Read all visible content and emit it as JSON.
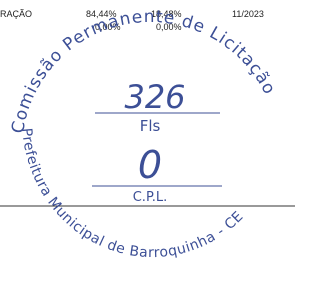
{
  "table": {
    "row": [
      "RAÇÃO",
      "84,44%",
      "18,48%",
      "11/2023"
    ],
    "subrow": [
      "0,00%",
      "0,00%"
    ]
  },
  "stamp": {
    "top_text": "Comissão Permanente de Licitação",
    "bottom_text": "Prefeitura Municipal de Barroquinha - CE",
    "number": "326",
    "fls_label": "Fls",
    "handwritten": "0",
    "cpl": "C.P.L."
  }
}
